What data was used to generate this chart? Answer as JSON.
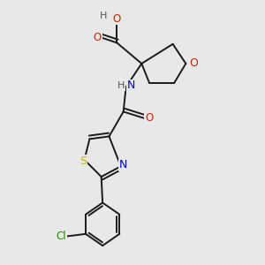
{
  "bg_color": "#e8e8e8",
  "fig_size": [
    3.0,
    3.0
  ],
  "dpi": 100,
  "bond_color": "#1a1a1a",
  "atom_colors": {
    "O": "#cc2200",
    "N": "#0000cc",
    "S": "#b8b800",
    "Cl": "#228800",
    "H": "#555555",
    "C": "#1a1a1a"
  }
}
